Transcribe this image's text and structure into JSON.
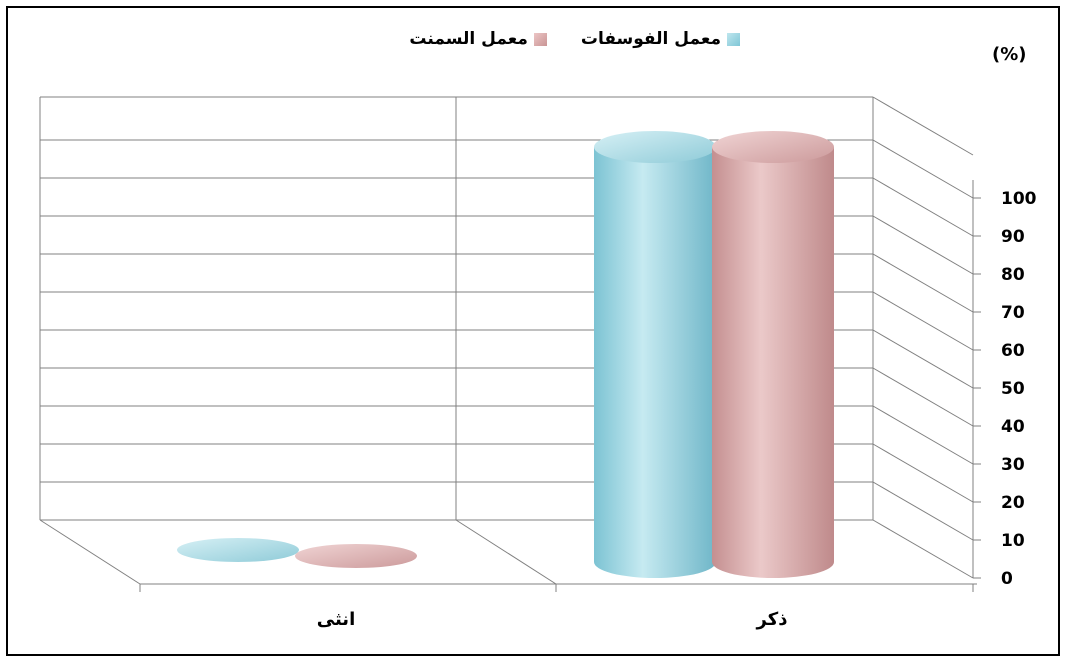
{
  "chart_data": {
    "type": "bar",
    "style": "3d-cylinder",
    "categories": [
      "ذكر",
      "انثى"
    ],
    "series": [
      {
        "name": "معمل الفوسفات",
        "values": [
          100,
          0
        ],
        "color": "#9fd4df"
      },
      {
        "name": "معمل السمنت",
        "values": [
          100,
          0
        ],
        "color": "#d9a8a8"
      }
    ],
    "unit_label": "(%)",
    "ylim": [
      0,
      100
    ],
    "yticks": [
      0,
      10,
      20,
      30,
      40,
      50,
      60,
      70,
      80,
      90,
      100
    ],
    "grid": true,
    "legend_position": "top"
  }
}
